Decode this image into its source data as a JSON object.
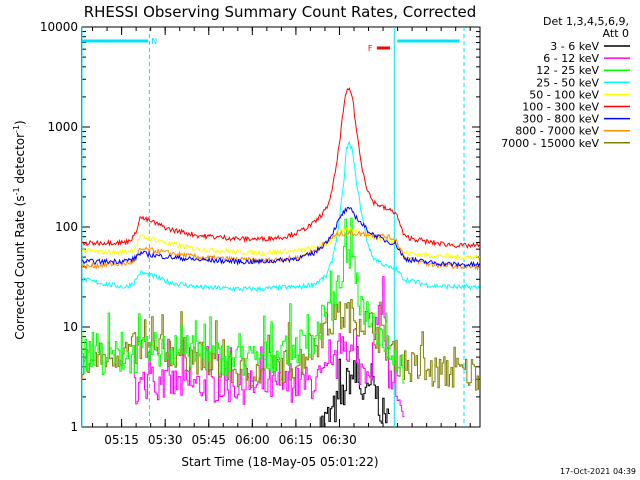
{
  "chart_data": {
    "type": "line",
    "title": "RHESSI Observing Summary Count Rates, Corrected",
    "xlabel": "Start Time (18-May-05 05:01:22)",
    "ylabel": "Corrected Count Rate (s⁻¹ detector⁻¹)",
    "ylabel_parts": [
      "Corrected Count Rate (s",
      "-1",
      " detector",
      "-1",
      ")"
    ],
    "yscale": "log",
    "ylim": [
      1,
      10000
    ],
    "yticks": [
      "1",
      "10",
      "100",
      "1000",
      "10000"
    ],
    "xlim_min": [
      0,
      137
    ],
    "xticks": [
      "05:15",
      "05:30",
      "05:45",
      "06:00",
      "06:15",
      "06:30"
    ],
    "xtick_min": [
      13.63,
      28.63,
      43.63,
      58.63,
      73.63,
      88.63
    ],
    "legend_header": [
      "Det 1,3,4,5,6,9,",
      "Att 0"
    ],
    "footer_timestamp": "17-Oct-2021 04:39",
    "markers": {
      "night_label": "N",
      "flare_label": "F",
      "night_min": [
        [
          0,
          22.8
        ],
        [
          108.5,
          130
        ]
      ],
      "flare_min": [
        101.5,
        106
      ],
      "vlines_min": [
        0,
        23.2,
        107.5,
        131.5
      ]
    },
    "series": [
      {
        "name": "3 - 6 keV",
        "color": "#000000",
        "style": "noisy_steps",
        "x": [
          82,
          86,
          90,
          92,
          94,
          96,
          98,
          100,
          102,
          104,
          106
        ],
        "y": [
          1,
          1.3,
          2.0,
          3.0,
          3.3,
          2.6,
          1.8,
          3.0,
          2.0,
          1.3,
          1
        ]
      },
      {
        "name": "6 - 12 keV",
        "color": "#ff00ff",
        "style": "noisy_steps",
        "x": [
          18,
          25,
          60,
          70,
          80,
          86,
          88,
          90,
          93,
          95,
          98,
          100,
          102,
          104,
          106,
          111
        ],
        "y": [
          2.5,
          2.7,
          2.5,
          2.6,
          2.8,
          3.3,
          4.3,
          8.2,
          5.5,
          3.7,
          3.9,
          4.4,
          8.3,
          26,
          3.0,
          1
        ]
      },
      {
        "name": "12 - 25 keV",
        "color": "#00ff00",
        "style": "noisy_steps",
        "x": [
          0,
          20,
          25,
          40,
          55,
          65,
          75,
          80,
          85,
          88,
          90,
          92,
          94,
          95,
          97,
          100,
          103,
          108,
          111
        ],
        "y": [
          5,
          5,
          6,
          5.5,
          4.5,
          5,
          6.5,
          7.5,
          13,
          20,
          40,
          55,
          35,
          22,
          16,
          12,
          9,
          5,
          4
        ]
      },
      {
        "name": "25 - 50 keV",
        "color": "#00ffff",
        "x": [
          0,
          8,
          15,
          18,
          20,
          25,
          30,
          40,
          55,
          62,
          70,
          75,
          80,
          84,
          86,
          88,
          90,
          91,
          92,
          93,
          94,
          96,
          98,
          100,
          105,
          108,
          111,
          120,
          130,
          137
        ],
        "y": [
          30,
          27,
          25,
          28,
          35,
          32,
          28,
          25,
          24,
          24,
          25,
          25,
          27,
          32,
          45,
          90,
          250,
          600,
          680,
          600,
          350,
          150,
          75,
          50,
          40,
          38,
          30,
          26,
          25,
          25
        ]
      },
      {
        "name": "50 - 100 keV",
        "color": "#ffff00",
        "x": [
          0,
          8,
          15,
          18,
          20,
          25,
          30,
          40,
          55,
          62,
          70,
          75,
          80,
          84,
          86,
          88,
          90,
          91,
          92,
          93,
          94,
          96,
          98,
          100,
          105,
          108,
          111,
          120,
          130,
          137
        ],
        "y": [
          58,
          56,
          56,
          60,
          80,
          75,
          68,
          60,
          56,
          55,
          57,
          58,
          62,
          68,
          75,
          85,
          92,
          94,
          96,
          95,
          92,
          88,
          82,
          78,
          74,
          70,
          55,
          52,
          50,
          50
        ]
      },
      {
        "name": "100 - 300 keV",
        "color": "#ff0000",
        "x": [
          0,
          8,
          15,
          18,
          20,
          25,
          30,
          40,
          55,
          62,
          70,
          75,
          80,
          84,
          86,
          88,
          90,
          91,
          92,
          93,
          94,
          96,
          98,
          100,
          105,
          108,
          111,
          120,
          130,
          137
        ],
        "y": [
          68,
          70,
          70,
          80,
          125,
          110,
          95,
          82,
          76,
          76,
          80,
          90,
          110,
          150,
          220,
          500,
          1500,
          2200,
          2400,
          2100,
          1200,
          450,
          250,
          180,
          150,
          140,
          80,
          70,
          65,
          65
        ]
      },
      {
        "name": "300 - 800 keV",
        "color": "#0000ff",
        "x": [
          0,
          8,
          15,
          18,
          20,
          25,
          30,
          40,
          55,
          62,
          70,
          75,
          80,
          84,
          86,
          88,
          90,
          91,
          92,
          93,
          94,
          96,
          98,
          100,
          105,
          108,
          111,
          120,
          130,
          137
        ],
        "y": [
          45,
          45,
          46,
          48,
          55,
          52,
          50,
          47,
          45,
          45,
          47,
          49,
          55,
          70,
          85,
          110,
          140,
          148,
          150,
          145,
          130,
          110,
          95,
          85,
          72,
          68,
          48,
          44,
          42,
          42
        ]
      },
      {
        "name": "800 - 7000 keV",
        "color": "#ff8c00",
        "x": [
          0,
          8,
          15,
          18,
          20,
          25,
          30,
          40,
          55,
          62,
          70,
          75,
          80,
          84,
          86,
          88,
          90,
          91,
          92,
          93,
          94,
          96,
          98,
          100,
          105,
          108,
          111,
          120,
          130,
          137
        ],
        "y": [
          40,
          42,
          43,
          45,
          60,
          58,
          55,
          50,
          47,
          46,
          48,
          50,
          58,
          70,
          78,
          84,
          86,
          87,
          87,
          87,
          86,
          86,
          85,
          84,
          80,
          75,
          50,
          42,
          40,
          40
        ]
      },
      {
        "name": "7000 - 15000 keV",
        "color": "#808000",
        "style": "noisy_steps",
        "x": [
          0,
          12,
          20,
          25,
          30,
          40,
          55,
          65,
          75,
          80,
          84,
          86,
          88,
          90,
          91,
          93,
          94,
          96,
          98,
          100,
          103,
          106,
          110,
          115,
          120,
          137
        ],
        "y": [
          4.2,
          5.5,
          6.0,
          5.6,
          5.8,
          5.0,
          3.5,
          3.6,
          4.5,
          6.5,
          9.5,
          11,
          12,
          13,
          13.5,
          13,
          12.5,
          12,
          11.5,
          10,
          8,
          6,
          4.5,
          3.8,
          3.5,
          3.5
        ]
      }
    ]
  }
}
